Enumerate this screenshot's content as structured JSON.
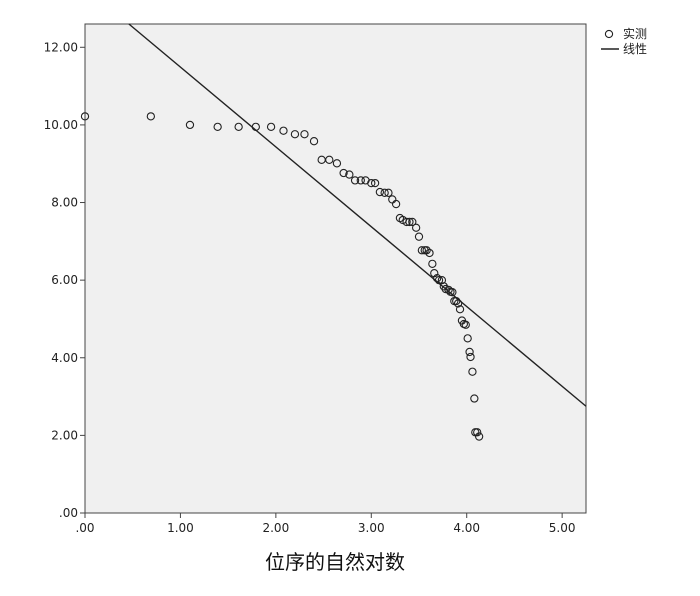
{
  "chart_data": {
    "type": "scatter",
    "title": "",
    "xlabel": "位序的自然对数",
    "ylabel": "",
    "xlim": [
      0,
      5.25
    ],
    "ylim": [
      0,
      12.6
    ],
    "x_ticks": [
      ".00",
      "1.00",
      "2.00",
      "3.00",
      "4.00",
      "5.00"
    ],
    "x_tick_values": [
      0,
      1,
      2,
      3,
      4,
      5
    ],
    "y_ticks": [
      ".00",
      "2.00",
      "4.00",
      "6.00",
      "8.00",
      "10.00",
      "12.00"
    ],
    "y_tick_values": [
      0,
      2,
      4,
      6,
      8,
      10,
      12
    ],
    "grid": false,
    "legend": {
      "position": "top-right",
      "entries": [
        "实测",
        "线性"
      ]
    },
    "series": [
      {
        "name": "实测",
        "kind": "scatter",
        "points": [
          [
            0.0,
            10.22
          ],
          [
            0.69,
            10.22
          ],
          [
            1.1,
            10.0
          ],
          [
            1.39,
            9.95
          ],
          [
            1.61,
            9.95
          ],
          [
            1.79,
            9.95
          ],
          [
            1.95,
            9.95
          ],
          [
            2.08,
            9.85
          ],
          [
            2.2,
            9.76
          ],
          [
            2.3,
            9.76
          ],
          [
            2.4,
            9.58
          ],
          [
            2.48,
            9.1
          ],
          [
            2.56,
            9.1
          ],
          [
            2.64,
            9.01
          ],
          [
            2.71,
            8.76
          ],
          [
            2.77,
            8.72
          ],
          [
            2.83,
            8.57
          ],
          [
            2.89,
            8.57
          ],
          [
            2.94,
            8.57
          ],
          [
            3.0,
            8.5
          ],
          [
            3.04,
            8.5
          ],
          [
            3.09,
            8.27
          ],
          [
            3.14,
            8.25
          ],
          [
            3.18,
            8.25
          ],
          [
            3.22,
            8.08
          ],
          [
            3.26,
            7.96
          ],
          [
            3.3,
            7.6
          ],
          [
            3.33,
            7.55
          ],
          [
            3.37,
            7.5
          ],
          [
            3.4,
            7.5
          ],
          [
            3.43,
            7.5
          ],
          [
            3.47,
            7.35
          ],
          [
            3.5,
            7.12
          ],
          [
            3.53,
            6.77
          ],
          [
            3.56,
            6.77
          ],
          [
            3.58,
            6.77
          ],
          [
            3.61,
            6.7
          ],
          [
            3.64,
            6.42
          ],
          [
            3.66,
            6.18
          ],
          [
            3.69,
            6.05
          ],
          [
            3.71,
            6.0
          ],
          [
            3.74,
            6.0
          ],
          [
            3.76,
            5.84
          ],
          [
            3.78,
            5.77
          ],
          [
            3.81,
            5.75
          ],
          [
            3.83,
            5.7
          ],
          [
            3.85,
            5.69
          ],
          [
            3.87,
            5.46
          ],
          [
            3.89,
            5.46
          ],
          [
            3.91,
            5.4
          ],
          [
            3.93,
            5.25
          ],
          [
            3.95,
            4.96
          ],
          [
            3.97,
            4.87
          ],
          [
            3.99,
            4.85
          ],
          [
            4.01,
            4.5
          ],
          [
            4.03,
            4.15
          ],
          [
            4.04,
            4.02
          ],
          [
            4.06,
            3.64
          ],
          [
            4.08,
            2.95
          ],
          [
            4.09,
            2.08
          ],
          [
            4.11,
            2.08
          ],
          [
            4.13,
            1.97
          ]
        ]
      },
      {
        "name": "线性",
        "kind": "line",
        "points": [
          [
            0.46,
            12.6
          ],
          [
            5.25,
            2.75
          ]
        ]
      }
    ]
  }
}
